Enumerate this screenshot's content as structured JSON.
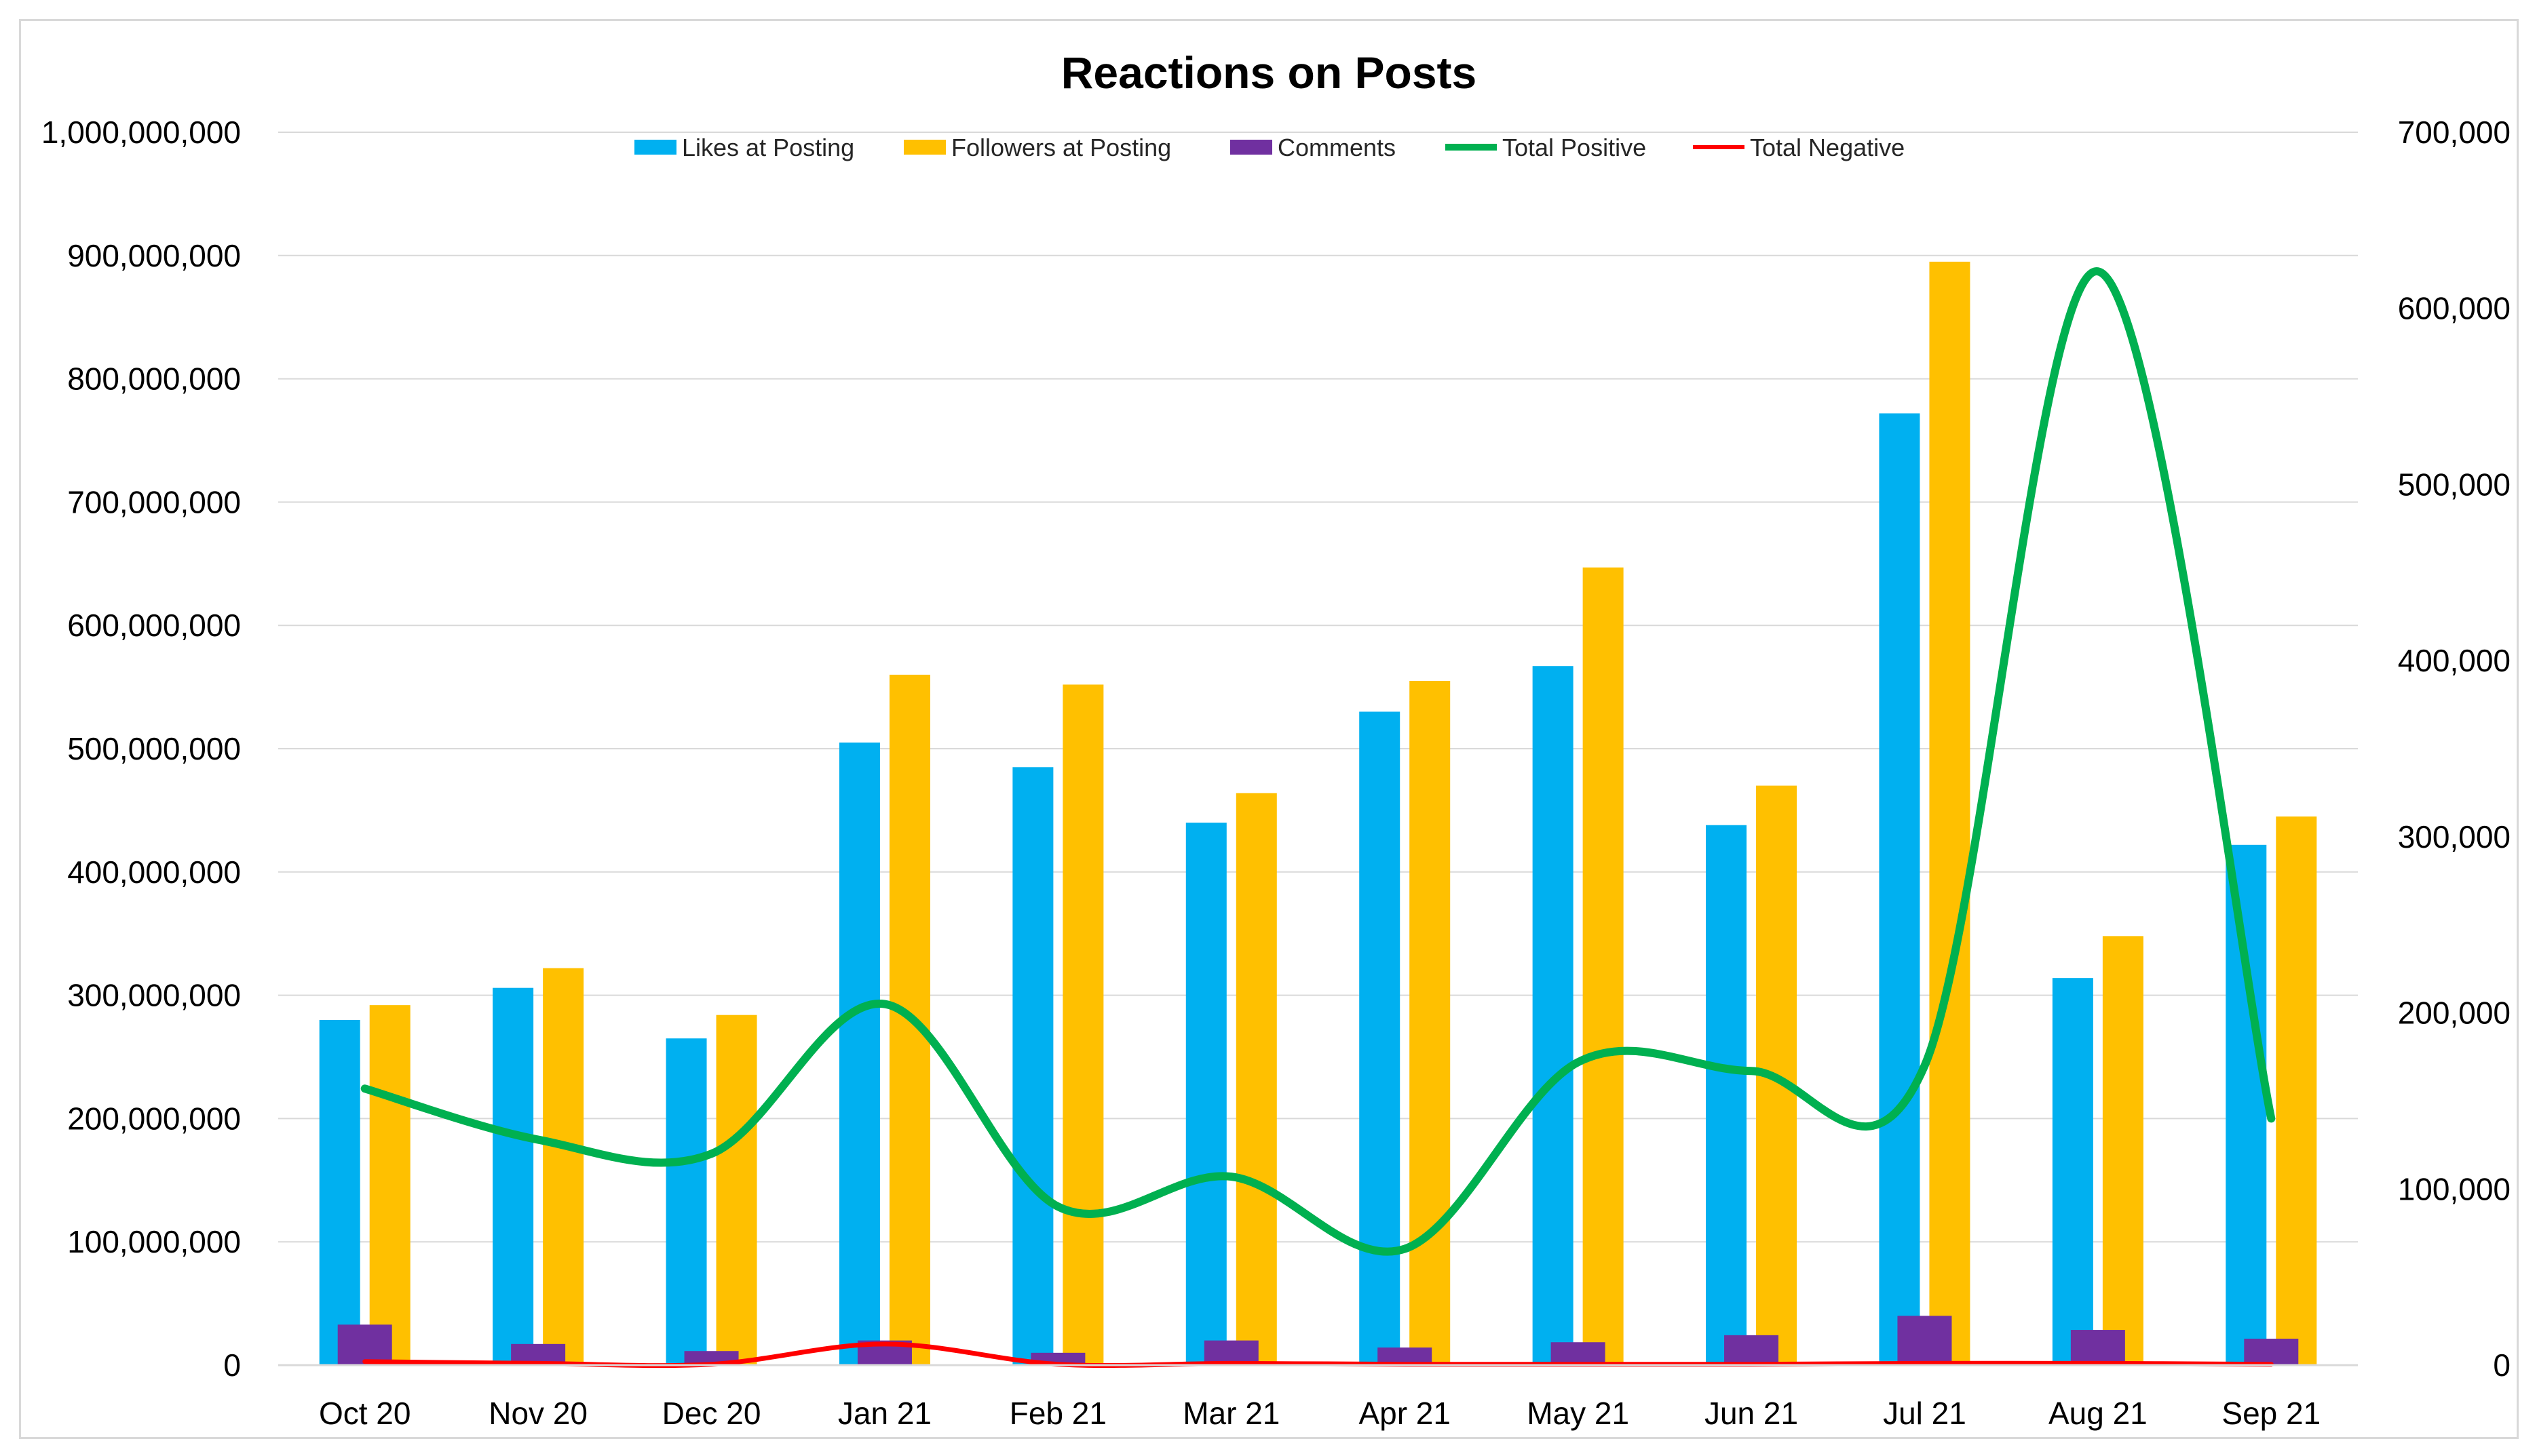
{
  "chart_data": {
    "type": "bar",
    "title": "Reactions on Posts",
    "categories": [
      "Oct 20",
      "Nov 20",
      "Dec 20",
      "Jan 21",
      "Feb 21",
      "Mar 21",
      "Apr 21",
      "May 21",
      "Jun 21",
      "Jul 21",
      "Aug 21",
      "Sep 21"
    ],
    "y_left": {
      "lim": [
        0,
        1000000000
      ],
      "ticks": [
        0,
        100000000,
        200000000,
        300000000,
        400000000,
        500000000,
        600000000,
        700000000,
        800000000,
        900000000,
        1000000000
      ],
      "tick_labels": [
        "0",
        "100,000,000",
        "200,000,000",
        "300,000,000",
        "400,000,000",
        "500,000,000",
        "600,000,000",
        "700,000,000",
        "800,000,000",
        "900,000,000",
        "1,000,000,000"
      ]
    },
    "y_right": {
      "lim": [
        0,
        700000
      ],
      "ticks": [
        0,
        100000,
        200000,
        300000,
        400000,
        500000,
        600000,
        700000
      ],
      "tick_labels": [
        "0",
        "100,000",
        "200,000",
        "300,000",
        "400,000",
        "500,000",
        "600,000",
        "700,000"
      ]
    },
    "series": [
      {
        "name": "Likes at Posting",
        "kind": "bar",
        "axis": "left",
        "color": "#00b0f0",
        "values": [
          280000000,
          306000000,
          265000000,
          505000000,
          485000000,
          440000000,
          530000000,
          567000000,
          438000000,
          772000000,
          314000000,
          422000000
        ]
      },
      {
        "name": "Followers at Posting",
        "kind": "bar",
        "axis": "left",
        "color": "#ffc000",
        "values": [
          292000000,
          322000000,
          284000000,
          560000000,
          552000000,
          464000000,
          555000000,
          647000000,
          470000000,
          895000000,
          348000000,
          445000000
        ]
      },
      {
        "name": "Comments",
        "kind": "bar",
        "axis": "right",
        "color": "#7030a0",
        "values": [
          23000,
          12000,
          8000,
          14000,
          7000,
          14000,
          10000,
          13000,
          17000,
          28000,
          20000,
          15000
        ]
      },
      {
        "name": "Total Positive",
        "kind": "line",
        "axis": "right",
        "color": "#00b050",
        "values": [
          157000,
          128000,
          120000,
          205000,
          90000,
          107000,
          66000,
          172000,
          167000,
          170000,
          621000,
          140000
        ]
      },
      {
        "name": "Total Negative",
        "kind": "line",
        "axis": "right",
        "color": "#ff0000",
        "values": [
          2000,
          1000,
          500,
          12000,
          500,
          1000,
          500,
          500,
          500,
          1000,
          1000,
          500
        ]
      }
    ],
    "legend": "top-center",
    "grid": true
  }
}
